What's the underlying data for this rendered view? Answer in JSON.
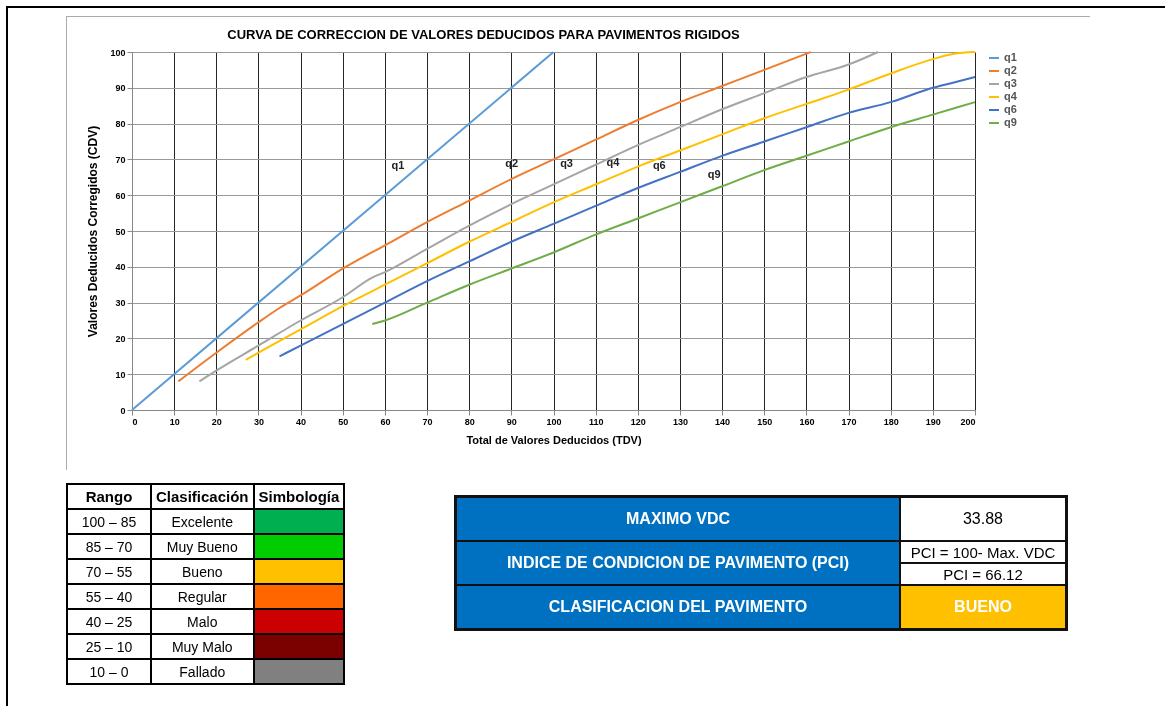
{
  "chart_data": [
    {
      "type": "line",
      "title": "CURVA DE CORRECCION  DE VALORES DEDUCIDOS PARA PAVIMENTOS RIGIDOS",
      "xlabel": "Total de Valores Deducidos (TDV)",
      "ylabel": "Valores Deducidos Corregidos (CDV)",
      "xlim": [
        0,
        200
      ],
      "ylim": [
        0,
        100
      ],
      "xticks": [
        0,
        10,
        20,
        30,
        40,
        50,
        60,
        70,
        80,
        90,
        100,
        110,
        120,
        130,
        140,
        150,
        160,
        170,
        180,
        190,
        200
      ],
      "yticks": [
        0,
        10,
        20,
        30,
        40,
        50,
        60,
        70,
        80,
        90,
        100
      ],
      "grid": true,
      "legend": "right",
      "series": [
        {
          "name": "q1",
          "color": "#5b9bd5",
          "x": [
            0,
            100
          ],
          "values": [
            0,
            100
          ]
        },
        {
          "name": "q2",
          "color": "#ed7d31",
          "x": [
            11,
            20,
            30,
            35,
            40,
            50,
            60,
            70,
            80,
            90,
            100,
            110,
            120,
            130,
            140,
            150,
            161
          ],
          "values": [
            8,
            16,
            24.5,
            28.5,
            32,
            39.5,
            46,
            52.5,
            58.5,
            64.5,
            70,
            75.5,
            81,
            86,
            90.5,
            95,
            100
          ]
        },
        {
          "name": "q3",
          "color": "#a5a5a5",
          "x": [
            16,
            20,
            30,
            40,
            50,
            57,
            60,
            70,
            80,
            90,
            100,
            110,
            120,
            130,
            140,
            150,
            160,
            170,
            177
          ],
          "values": [
            8,
            11,
            18,
            25,
            31.5,
            37,
            38.5,
            45,
            51.5,
            57.5,
            63,
            68.5,
            74,
            79,
            84,
            88.5,
            93,
            96.5,
            100
          ]
        },
        {
          "name": "q4",
          "color": "#ffc000",
          "x": [
            27,
            30,
            40,
            50,
            60,
            70,
            80,
            90,
            100,
            110,
            120,
            130,
            140,
            150,
            160,
            170,
            180,
            190,
            195,
            200
          ],
          "values": [
            14,
            16,
            22.5,
            29,
            35,
            41,
            47,
            52.5,
            58,
            63,
            68,
            72.5,
            77,
            81.5,
            85.5,
            89.5,
            94,
            98,
            99.5,
            100
          ]
        },
        {
          "name": "q6",
          "color": "#4472c4",
          "x": [
            35,
            40,
            50,
            60,
            70,
            80,
            90,
            100,
            110,
            120,
            130,
            140,
            150,
            160,
            170,
            180,
            190,
            195,
            200
          ],
          "values": [
            15,
            18,
            24,
            30,
            36,
            41.5,
            47,
            52,
            57,
            62,
            66.5,
            71,
            75,
            79,
            83,
            86,
            90,
            91.5,
            93
          ]
        },
        {
          "name": "q9",
          "color": "#70ad47",
          "x": [
            57,
            60,
            70,
            80,
            90,
            100,
            110,
            120,
            130,
            140,
            150,
            160,
            170,
            180,
            190,
            200
          ],
          "values": [
            24,
            25,
            30,
            35,
            39.5,
            44,
            49,
            53.5,
            58,
            62.5,
            67,
            71,
            75,
            79,
            82.5,
            86
          ]
        }
      ],
      "annotations": [
        {
          "text": "q1",
          "x": 65,
          "y": 65
        },
        {
          "text": "q2",
          "x": 92,
          "y": 65.6
        },
        {
          "text": "q3",
          "x": 105,
          "y": 65.75
        },
        {
          "text": "q4",
          "x": 116,
          "y": 66
        },
        {
          "text": "q6",
          "x": 127,
          "y": 65.15
        },
        {
          "text": "q9",
          "x": 140,
          "y": 62.5
        }
      ]
    },
    {
      "type": "other",
      "annotations": [
        "Rango",
        "Clasificación",
        "Simbología",
        "100 – 85",
        "Excelente",
        "85 – 70",
        "Muy Bueno",
        "70 – 55",
        "Bueno",
        "55 – 40",
        "Regular",
        "40 – 25",
        "Malo",
        "25 – 10",
        "Muy Malo",
        "10 – 0",
        "Fallado"
      ],
      "colors": [
        "#00b050",
        "#00cc00",
        "#ffc000",
        "#ff6600",
        "#cc0000",
        "#7b0000",
        "#808080"
      ]
    },
    {
      "type": "other",
      "annotations": [
        "MAXIMO VDC",
        "33.88",
        "INDICE DE CONDICION DE PAVIMENTO (PCI)",
        "PCI = 100- Max. VDC",
        "PCI = 66.12",
        "CLASIFICACION DEL PAVIMENTO",
        "BUENO"
      ],
      "colors": [
        "#0070c0",
        "#ffc000"
      ]
    }
  ]
}
